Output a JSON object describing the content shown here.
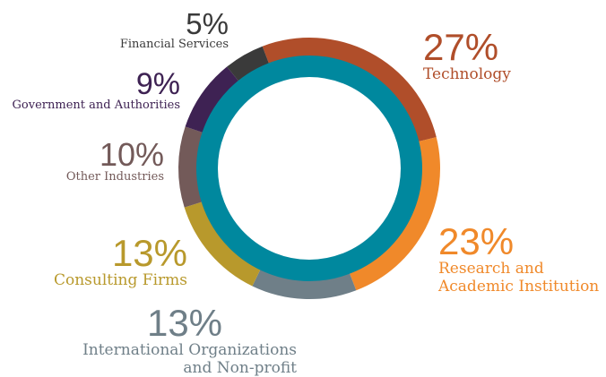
{
  "chart_data": {
    "type": "donut",
    "categories": [
      "Technology",
      "Research and Academic Institution",
      "International Organizations and Non-profit",
      "Consulting Firms",
      "Other Industries",
      "Government and Authorities",
      "Financial Services"
    ],
    "values": [
      27,
      23,
      13,
      13,
      10,
      9,
      5
    ],
    "value_labels": [
      "27%",
      "23%",
      "13%",
      "13%",
      "10%",
      "9%",
      "5%"
    ],
    "colors": [
      "#b04e2a",
      "#f0892a",
      "#6f7f88",
      "#b8992c",
      "#735a59",
      "#3e2253",
      "#3a3a3a"
    ]
  }
}
